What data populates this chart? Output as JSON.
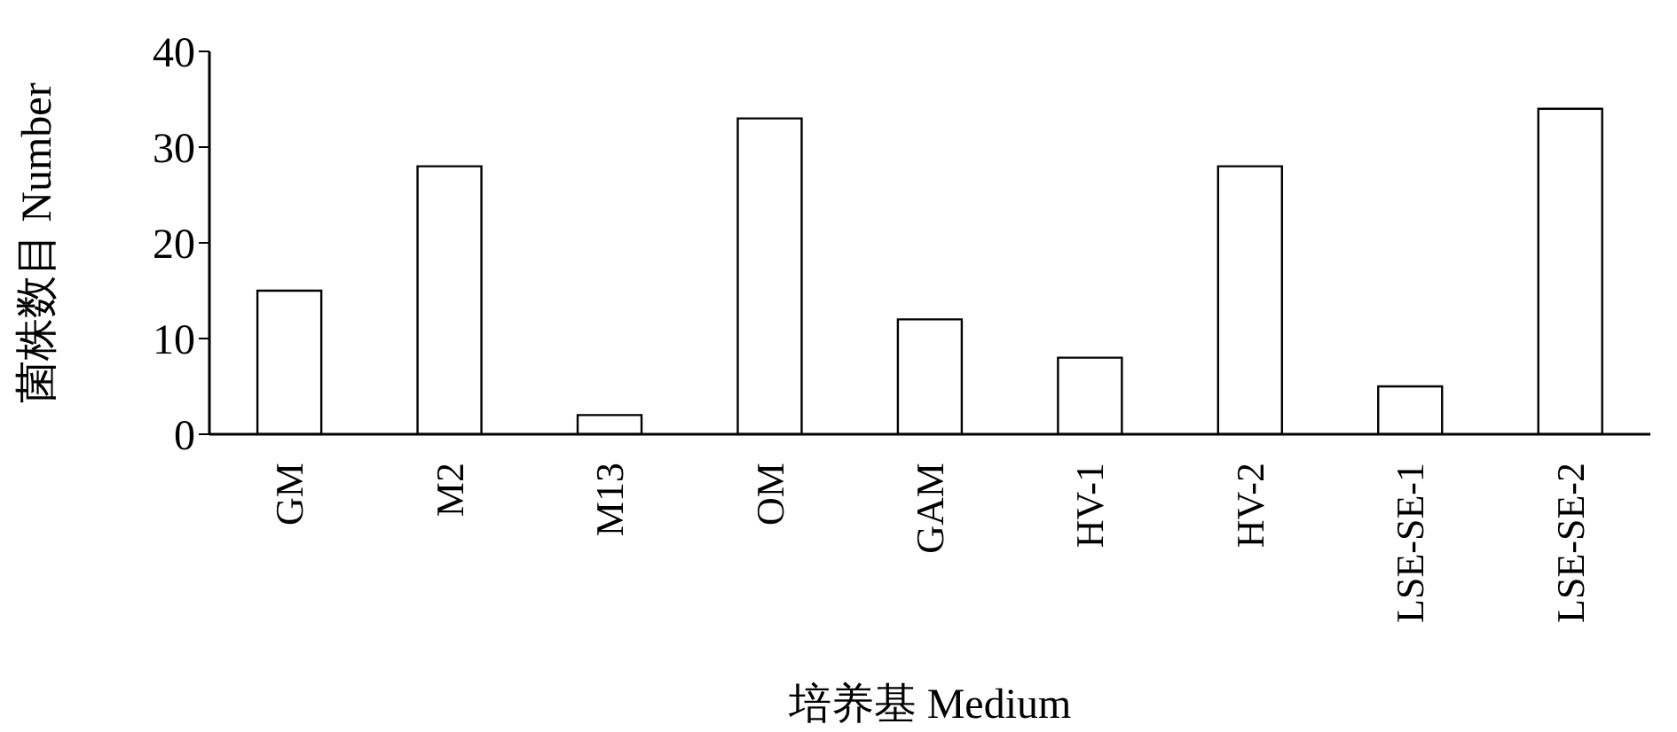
{
  "chart_data": {
    "type": "bar",
    "xlabel": "培养基 Medium",
    "ylabel": "菌株数目 Number",
    "categories": [
      "GM",
      "M2",
      "M13",
      "OM",
      "GAM",
      "HV-1",
      "HV-2",
      "LSE-SE-1",
      "LSE-SE-2"
    ],
    "values": [
      15,
      28,
      2,
      33,
      12,
      8,
      28,
      5,
      34
    ],
    "color": "#ffffff",
    "ylim": [
      0,
      40
    ],
    "yticks": [
      0,
      10,
      20,
      30,
      40
    ],
    "grid": false,
    "legend": false
  }
}
